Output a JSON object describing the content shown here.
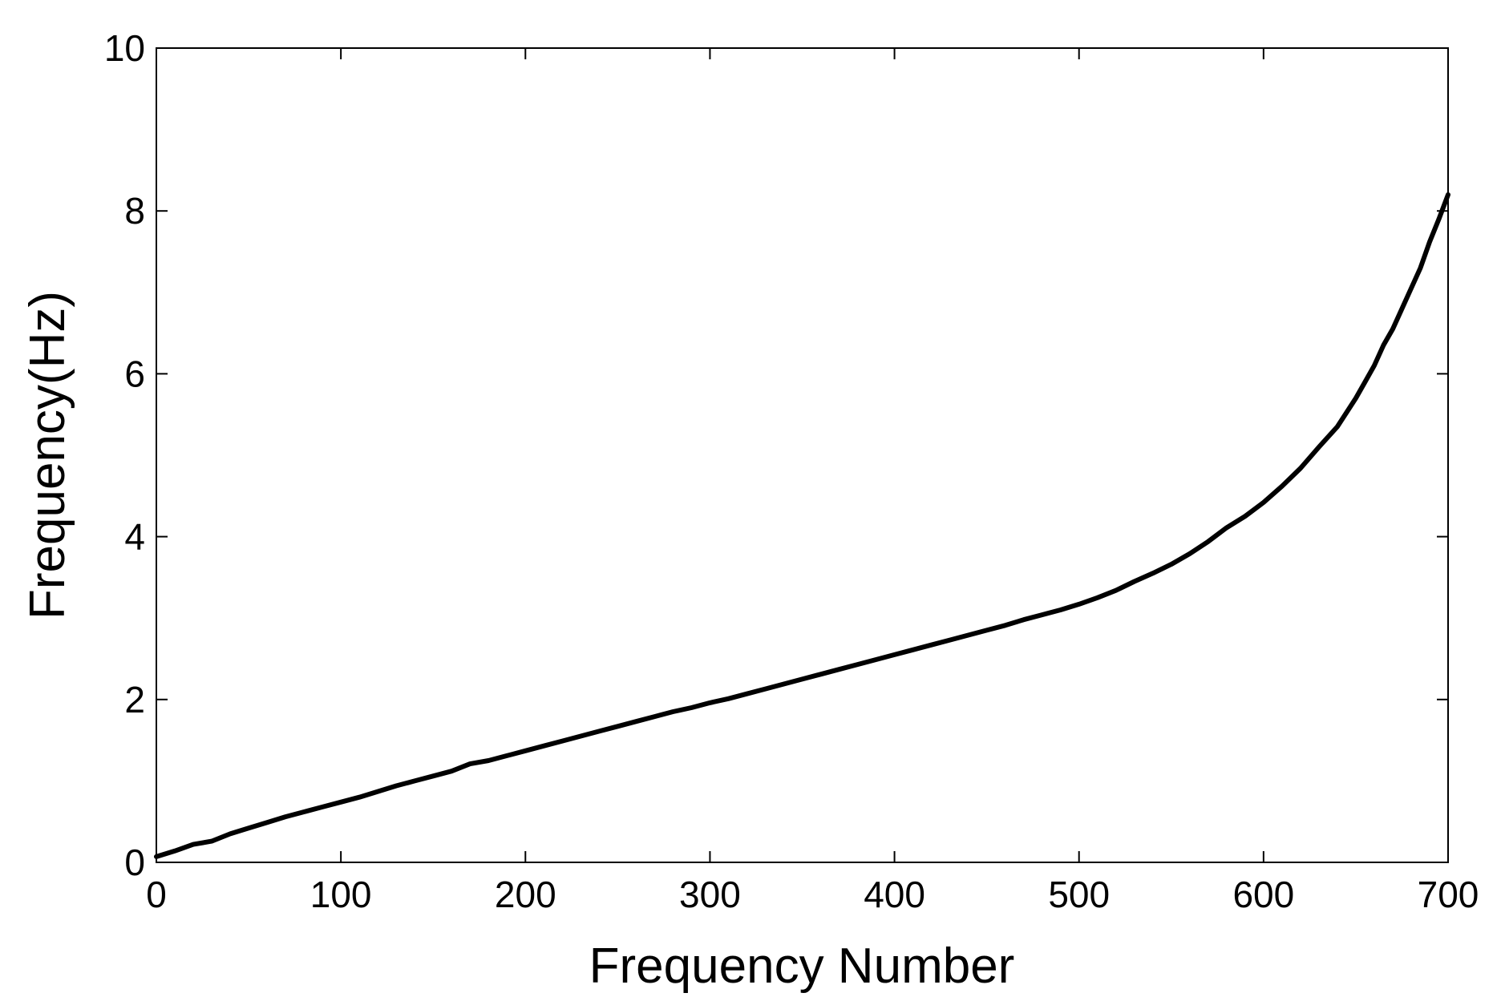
{
  "chart_data": {
    "type": "line",
    "title": "",
    "xlabel": "Frequency Number",
    "ylabel": "Frequency(Hz)",
    "xlim": [
      0,
      700
    ],
    "ylim": [
      0,
      10
    ],
    "xticks": [
      0,
      100,
      200,
      300,
      400,
      500,
      600,
      700
    ],
    "yticks": [
      0,
      2,
      4,
      6,
      8,
      10
    ],
    "grid": false,
    "legend": "none",
    "line_color": "#000000",
    "series": [
      {
        "x": [
          0,
          10,
          20,
          30,
          40,
          50,
          60,
          70,
          80,
          90,
          100,
          110,
          120,
          130,
          140,
          150,
          160,
          170,
          180,
          190,
          200,
          210,
          220,
          230,
          240,
          250,
          260,
          270,
          280,
          290,
          300,
          310,
          320,
          330,
          340,
          350,
          360,
          370,
          380,
          390,
          400,
          410,
          420,
          430,
          440,
          450,
          460,
          470,
          480,
          490,
          500,
          510,
          520,
          530,
          540,
          550,
          560,
          570,
          580,
          590,
          600,
          610,
          620,
          630,
          640,
          650,
          655,
          660,
          665,
          670,
          675,
          680,
          685,
          690,
          695,
          700
        ],
        "y": [
          0.07,
          0.14,
          0.22,
          0.26,
          0.35,
          0.42,
          0.49,
          0.56,
          0.62,
          0.68,
          0.74,
          0.8,
          0.87,
          0.94,
          1.0,
          1.06,
          1.12,
          1.21,
          1.25,
          1.31,
          1.37,
          1.43,
          1.49,
          1.55,
          1.61,
          1.67,
          1.73,
          1.79,
          1.85,
          1.9,
          1.96,
          2.01,
          2.07,
          2.13,
          2.19,
          2.25,
          2.31,
          2.37,
          2.43,
          2.49,
          2.55,
          2.61,
          2.67,
          2.73,
          2.79,
          2.85,
          2.91,
          2.98,
          3.04,
          3.1,
          3.17,
          3.25,
          3.34,
          3.45,
          3.55,
          3.66,
          3.79,
          3.94,
          4.11,
          4.25,
          4.42,
          4.62,
          4.84,
          5.1,
          5.35,
          5.7,
          5.9,
          6.1,
          6.35,
          6.55,
          6.8,
          7.05,
          7.3,
          7.62,
          7.9,
          8.2
        ]
      }
    ]
  }
}
